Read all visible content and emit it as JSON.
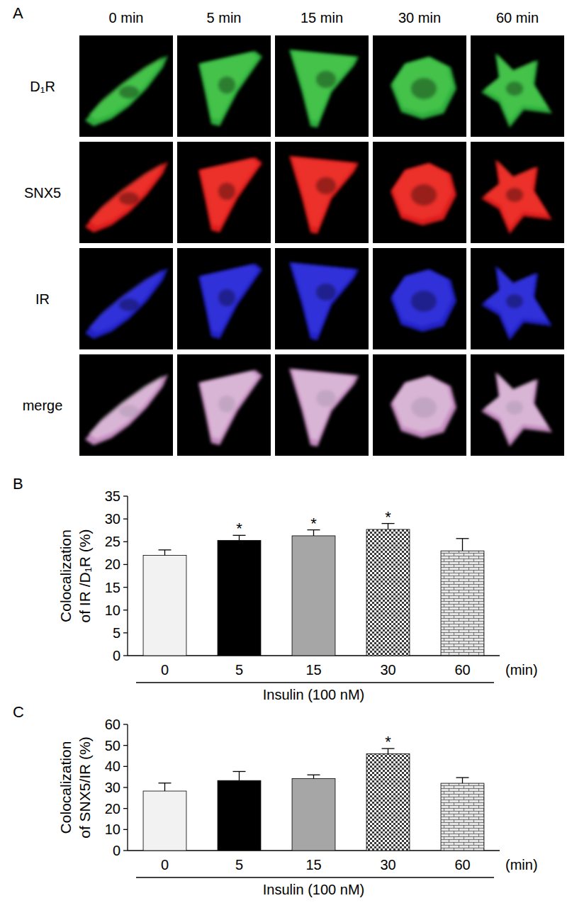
{
  "panel_a": {
    "panel_label": "A",
    "columns": [
      "0 min",
      "5 min",
      "15 min",
      "30 min",
      "60 min"
    ],
    "rows": [
      "D₁R",
      "SNX5",
      "IR",
      "merge"
    ]
  },
  "chart_data": [
    {
      "type": "bar",
      "panel_label": "B",
      "ylabel": [
        "Colocalization",
        "of IR /D₁R (%)"
      ],
      "xlabel": "Insulin (100 nM)",
      "xunit": "(min)",
      "categories": [
        "0",
        "5",
        "15",
        "30",
        "60"
      ],
      "values": [
        22,
        25.3,
        26.3,
        27.7,
        23
      ],
      "errors": [
        1.2,
        1.1,
        1.3,
        1.3,
        2.7
      ],
      "significance": [
        null,
        "*",
        "*",
        "*",
        null
      ],
      "colors": [
        "#f2f2f2",
        "#000000",
        "#a6a6a6",
        "#3a3a3a",
        "#e6e6e6"
      ],
      "ylim": [
        0,
        35
      ],
      "yticks": [
        0,
        5,
        10,
        15,
        20,
        25,
        30,
        35
      ]
    },
    {
      "type": "bar",
      "panel_label": "C",
      "ylabel": [
        "Colocalization",
        "of SNX5/IR (%)"
      ],
      "xlabel": "Insulin (100 nM)",
      "xunit": "(min)",
      "categories": [
        "0",
        "5",
        "15",
        "30",
        "60"
      ],
      "values": [
        28.3,
        33.3,
        34.2,
        46,
        32
      ],
      "errors": [
        3.8,
        4.3,
        1.8,
        2.5,
        2.7
      ],
      "significance": [
        null,
        null,
        null,
        "*",
        null
      ],
      "colors": [
        "#f2f2f2",
        "#000000",
        "#a6a6a6",
        "#3a3a3a",
        "#e6e6e6"
      ],
      "ylim": [
        0,
        60
      ],
      "yticks": [
        0,
        10,
        20,
        30,
        40,
        50,
        60
      ]
    }
  ]
}
